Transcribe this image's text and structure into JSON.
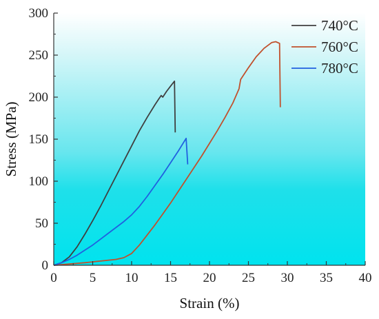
{
  "chart_data": {
    "type": "line",
    "title": "",
    "xlabel": "Strain (%)",
    "ylabel": "Stress (MPa)",
    "xlim": [
      0,
      40
    ],
    "ylim": [
      0,
      300
    ],
    "xticks": [
      "0",
      "5",
      "10",
      "15",
      "20",
      "25",
      "30",
      "35",
      "40"
    ],
    "yticks": [
      "0",
      "50",
      "100",
      "150",
      "200",
      "250",
      "300"
    ],
    "grid": false,
    "legend_position": "top-right",
    "background": "cyan gradient (white at top to cyan at bottom)",
    "colors": {
      "background_top": "#ffffff",
      "background_bottom": "#00e5ee",
      "axis": "#333333"
    },
    "series": [
      {
        "name": "740°C",
        "color": "#3f3f3f",
        "points": [
          [
            0,
            0
          ],
          [
            1,
            3
          ],
          [
            2,
            10
          ],
          [
            3,
            22
          ],
          [
            4,
            37
          ],
          [
            5,
            53
          ],
          [
            6,
            70
          ],
          [
            7,
            88
          ],
          [
            8,
            106
          ],
          [
            9,
            124
          ],
          [
            10,
            142
          ],
          [
            11,
            160
          ],
          [
            12,
            176
          ],
          [
            13,
            191
          ],
          [
            13.5,
            198
          ],
          [
            13.8,
            202
          ],
          [
            14,
            200
          ],
          [
            14.5,
            207
          ],
          [
            15,
            213
          ],
          [
            15.5,
            219
          ],
          [
            15.6,
            158
          ]
        ]
      },
      {
        "name": "760°C",
        "color": "#c1502c",
        "points": [
          [
            0,
            0
          ],
          [
            2,
            1.5
          ],
          [
            4,
            3
          ],
          [
            6,
            5
          ],
          [
            8,
            7
          ],
          [
            9,
            9
          ],
          [
            10,
            14
          ],
          [
            11,
            24
          ],
          [
            12,
            36
          ],
          [
            13,
            48
          ],
          [
            14,
            61
          ],
          [
            15,
            74
          ],
          [
            16,
            88
          ],
          [
            17,
            102
          ],
          [
            18,
            116
          ],
          [
            19,
            130
          ],
          [
            20,
            145
          ],
          [
            21,
            160
          ],
          [
            22,
            176
          ],
          [
            23,
            193
          ],
          [
            23.8,
            210
          ],
          [
            24,
            221
          ],
          [
            25,
            235
          ],
          [
            26,
            248
          ],
          [
            27,
            258
          ],
          [
            28,
            265
          ],
          [
            28.5,
            266
          ],
          [
            29,
            264
          ],
          [
            29.1,
            188
          ]
        ]
      },
      {
        "name": "780°C",
        "color": "#2060e0",
        "points": [
          [
            0,
            0
          ],
          [
            1,
            3
          ],
          [
            2,
            7
          ],
          [
            3,
            12
          ],
          [
            4,
            18
          ],
          [
            5,
            24
          ],
          [
            6,
            31
          ],
          [
            7,
            38
          ],
          [
            8,
            45
          ],
          [
            9,
            52
          ],
          [
            10,
            60
          ],
          [
            11,
            70
          ],
          [
            12,
            82
          ],
          [
            13,
            95
          ],
          [
            14,
            108
          ],
          [
            15,
            122
          ],
          [
            16,
            136
          ],
          [
            17,
            151
          ],
          [
            17.2,
            120
          ]
        ]
      }
    ]
  }
}
